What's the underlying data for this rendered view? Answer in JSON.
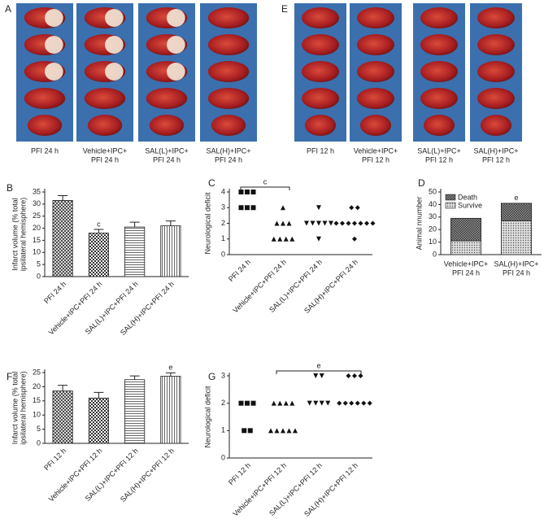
{
  "photo_panels": [
    {
      "panel": "A",
      "captions": [
        [
          "PFI 24 h"
        ],
        [
          "Vehicle+IPC+",
          "PFI 24 h"
        ],
        [
          "SAL(L)+IPC+",
          "PFI 24 h"
        ],
        [
          "SAL(H)+IPC+",
          "PFI 24 h"
        ]
      ]
    },
    {
      "panel": "E",
      "captions": [
        [
          "PFI 12 h"
        ],
        [
          "Vehicle+IPC+",
          "PFI 12 h"
        ],
        [
          "SAL(L)+IPC+",
          "PFI 12 h"
        ],
        [
          "SAL(H)+IPC+",
          "PFI 12 h"
        ]
      ]
    }
  ],
  "chart_data": [
    {
      "panel": "B",
      "type": "bar",
      "y_label": [
        "Infarct volume (% total",
        "ipsilateral hemisphere)"
      ],
      "categories": [
        "PFI 24 h",
        "Vehicle+IPC+PFI 24 h",
        "SAL(L)+IPC+PFI 24 h",
        "SAL(H)+IPC+PFI 24 h"
      ],
      "values": [
        31.5,
        18,
        20.5,
        21
      ],
      "errors": [
        2,
        1.5,
        2,
        2
      ],
      "annotations": [
        null,
        "c",
        null,
        null
      ],
      "patterns": [
        "crosshatch",
        "checker",
        "hlines",
        "vlines"
      ],
      "ylim": [
        0,
        35
      ],
      "yticks": [
        0,
        5,
        10,
        15,
        20,
        25,
        30,
        35
      ]
    },
    {
      "panel": "C",
      "type": "dotplot",
      "y_label": [
        "Neurological deficit"
      ],
      "categories": [
        "PFI 24 h",
        "Vehicle+IPC+PFI 24 h",
        "SAL(L)+IPC+PFI 24 h",
        "SAL(H)+IPC+PFI 24 h"
      ],
      "values": [
        [
          4,
          4,
          4,
          3,
          3,
          3
        ],
        [
          3,
          2,
          2,
          2,
          1,
          1,
          1,
          1
        ],
        [
          3,
          2,
          2,
          2,
          2,
          2,
          1
        ],
        [
          3,
          3,
          2,
          2,
          2,
          2,
          2,
          2,
          2,
          1
        ]
      ],
      "markers": [
        "square",
        "triangle",
        "triangle-down",
        "diamond"
      ],
      "brackets": [
        {
          "label": "c",
          "categories": [
            0,
            1
          ]
        }
      ],
      "ylim": [
        0,
        4
      ],
      "yticks": [
        0,
        1,
        2,
        3,
        4
      ]
    },
    {
      "panel": "D",
      "type": "stacked-bar",
      "y_label": [
        "Animal nnumber"
      ],
      "categories": [
        [
          "Vehicle+IPC+",
          "PFI 24 h"
        ],
        [
          "SAL(H)+IPC+",
          "PFI 24 h"
        ]
      ],
      "series": [
        {
          "name": "Survive",
          "pattern": "dots",
          "values": [
            11,
            27
          ]
        },
        {
          "name": "Death",
          "pattern": "darkcheck",
          "values": [
            18,
            14
          ]
        }
      ],
      "annotations": [
        null,
        "e"
      ],
      "ylim": [
        0,
        50
      ],
      "yticks": [
        0,
        10,
        20,
        30,
        40,
        50
      ]
    },
    {
      "panel": "F",
      "type": "bar",
      "y_label": [
        "Infarct volume (% total",
        "ipsilateral hemisphere)"
      ],
      "categories": [
        "PFI 12 h",
        "Vehicle+IPC+PFI 12 h",
        "SAL(L)+IPC+PFI 12 h",
        "SAL(H)+IPC+PFI 12 h"
      ],
      "values": [
        18.5,
        16,
        22.5,
        23.7
      ],
      "errors": [
        2,
        2,
        1.3,
        1.2
      ],
      "annotations": [
        null,
        null,
        null,
        "e"
      ],
      "patterns": [
        "crosshatch",
        "checker",
        "hlines",
        "vlines"
      ],
      "ylim": [
        0,
        25
      ],
      "yticks": [
        0,
        5,
        10,
        15,
        20,
        25
      ]
    },
    {
      "panel": "G",
      "type": "dotplot",
      "y_label": [
        "Neurological deficit"
      ],
      "categories": [
        "PFI 12 h",
        "Vehicle+IPC+PFI 12 h",
        "SAL(L)+IPC+PFI 12 h",
        "SAL(H)+IPC+PFI 12 h"
      ],
      "values": [
        [
          2,
          2,
          2,
          1,
          1
        ],
        [
          2,
          2,
          2,
          2,
          1,
          1,
          1,
          1,
          1
        ],
        [
          3,
          3,
          2,
          2,
          2,
          2
        ],
        [
          3,
          3,
          3,
          2,
          2,
          2,
          2,
          2,
          2
        ]
      ],
      "markers": [
        "square",
        "triangle",
        "triangle-down",
        "diamond"
      ],
      "brackets": [
        {
          "label": "e",
          "categories": [
            1,
            3
          ]
        }
      ],
      "ylim": [
        0,
        3
      ],
      "yticks": [
        0,
        1,
        2,
        3
      ]
    }
  ]
}
